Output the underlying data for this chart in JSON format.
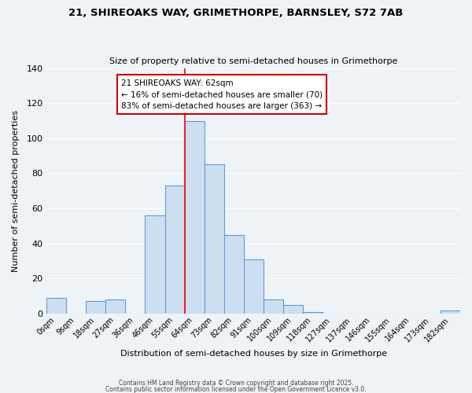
{
  "title_line1": "21, SHIREOAKS WAY, GRIMETHORPE, BARNSLEY, S72 7AB",
  "title_line2": "Size of property relative to semi-detached houses in Grimethorpe",
  "xlabel": "Distribution of semi-detached houses by size in Grimethorpe",
  "ylabel": "Number of semi-detached properties",
  "bar_color": "#ccdff0",
  "bar_edge_color": "#6699cc",
  "background_color": "#eef3f8",
  "grid_color": "#ffffff",
  "annotation_box_color": "#ffffff",
  "annotation_border_color": "#cc0000",
  "property_line_color": "#ff0000",
  "categories": [
    "0sqm",
    "9sqm",
    "18sqm",
    "27sqm",
    "36sqm",
    "46sqm",
    "55sqm",
    "64sqm",
    "73sqm",
    "82sqm",
    "91sqm",
    "100sqm",
    "109sqm",
    "118sqm",
    "127sqm",
    "137sqm",
    "146sqm",
    "155sqm",
    "164sqm",
    "173sqm",
    "182sqm"
  ],
  "values": [
    9,
    0,
    7,
    8,
    0,
    56,
    73,
    110,
    85,
    45,
    31,
    8,
    5,
    1,
    0,
    0,
    0,
    0,
    0,
    0,
    2
  ],
  "property_label": "21 SHIREOAKS WAY: 62sqm",
  "smaller_pct": 16,
  "smaller_count": 70,
  "larger_pct": 83,
  "larger_count": 363,
  "ylim": [
    0,
    140
  ],
  "yticks": [
    0,
    20,
    40,
    60,
    80,
    100,
    120,
    140
  ],
  "footnote1": "Contains HM Land Registry data © Crown copyright and database right 2025.",
  "footnote2": "Contains public sector information licensed under the Open Government Licence v3.0.",
  "property_line_x": 6.5
}
